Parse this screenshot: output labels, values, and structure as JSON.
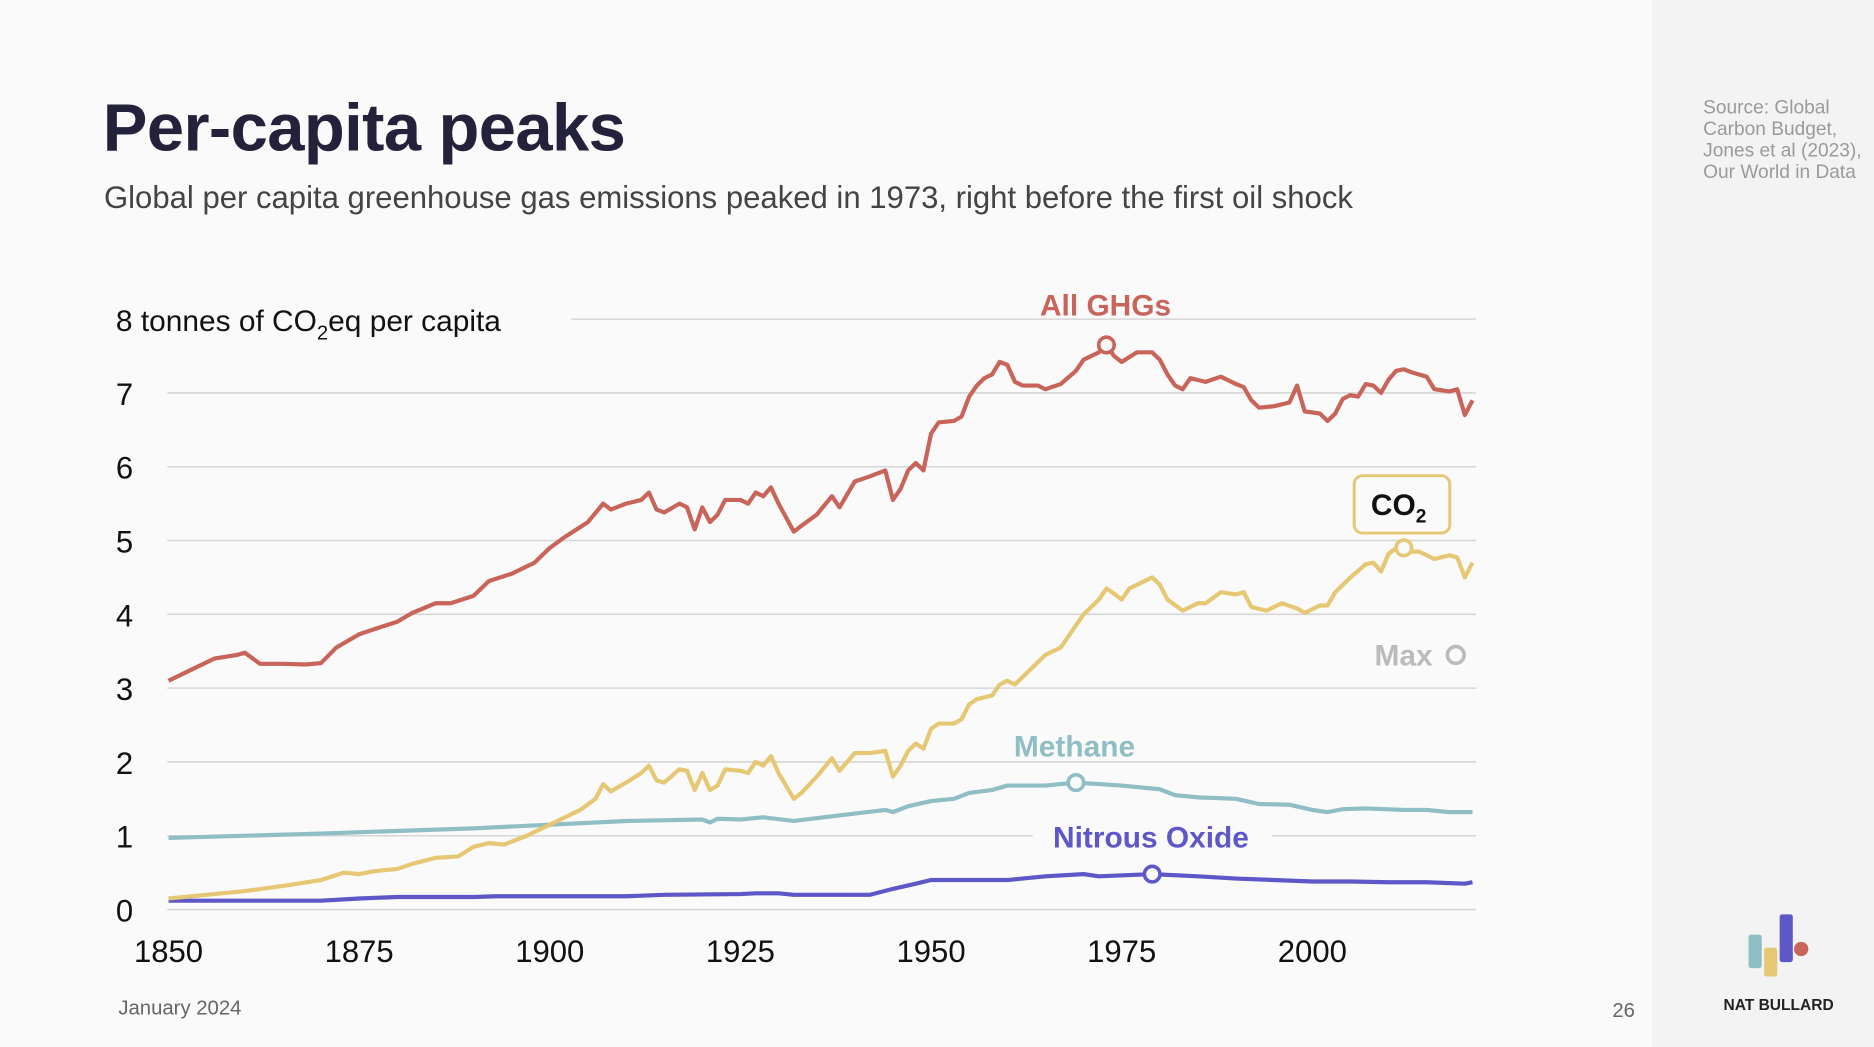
{
  "title": "Per-capita peaks",
  "subtitle": "Global per capita greenhouse gas emissions peaked in 1973, right before the first oil shock",
  "source": "Source: Global Carbon Budget, Jones et al (2023), Our World in Data",
  "footer": {
    "date": "January 2024",
    "page": "26",
    "brand": "NAT BULLARD"
  },
  "colors": {
    "ghg": "#c8645a",
    "co2": "#e6c874",
    "methane": "#8fbec4",
    "nitrous": "#5e57c8",
    "max": "#bbbbbb"
  },
  "chart_data": {
    "type": "line",
    "title": "Per-capita peaks",
    "ylabel_prefix": "8 tonnes of CO",
    "ylabel_sub": "2",
    "ylabel_suffix": "eq per capita",
    "xlim": [
      1850,
      2021
    ],
    "ylim": [
      0,
      8
    ],
    "grid": true,
    "xticks": [
      "1850",
      "1875",
      "1900",
      "1925",
      "1950",
      "1975",
      "2000"
    ],
    "yticks": [
      "0",
      "1",
      "2",
      "3",
      "4",
      "5",
      "6",
      "7"
    ],
    "legend_label_max": "Max",
    "series": [
      {
        "name": "All GHGs",
        "key": "ghg",
        "max_year": 1973,
        "points": [
          [
            1850,
            3.1
          ],
          [
            1853,
            3.25
          ],
          [
            1856,
            3.4
          ],
          [
            1859,
            3.45
          ],
          [
            1860,
            3.48
          ],
          [
            1862,
            3.33
          ],
          [
            1865,
            3.33
          ],
          [
            1868,
            3.32
          ],
          [
            1870,
            3.34
          ],
          [
            1872,
            3.55
          ],
          [
            1875,
            3.73
          ],
          [
            1877,
            3.8
          ],
          [
            1880,
            3.9
          ],
          [
            1882,
            4.02
          ],
          [
            1885,
            4.15
          ],
          [
            1887,
            4.15
          ],
          [
            1890,
            4.25
          ],
          [
            1892,
            4.45
          ],
          [
            1895,
            4.55
          ],
          [
            1898,
            4.7
          ],
          [
            1900,
            4.9
          ],
          [
            1902,
            5.05
          ],
          [
            1905,
            5.25
          ],
          [
            1907,
            5.5
          ],
          [
            1908,
            5.42
          ],
          [
            1910,
            5.5
          ],
          [
            1912,
            5.55
          ],
          [
            1913,
            5.65
          ],
          [
            1914,
            5.42
          ],
          [
            1915,
            5.38
          ],
          [
            1917,
            5.5
          ],
          [
            1918,
            5.45
          ],
          [
            1919,
            5.15
          ],
          [
            1920,
            5.45
          ],
          [
            1921,
            5.25
          ],
          [
            1922,
            5.35
          ],
          [
            1923,
            5.55
          ],
          [
            1925,
            5.55
          ],
          [
            1926,
            5.5
          ],
          [
            1927,
            5.65
          ],
          [
            1928,
            5.6
          ],
          [
            1929,
            5.72
          ],
          [
            1930,
            5.5
          ],
          [
            1932,
            5.12
          ],
          [
            1933,
            5.2
          ],
          [
            1935,
            5.35
          ],
          [
            1937,
            5.6
          ],
          [
            1938,
            5.45
          ],
          [
            1940,
            5.8
          ],
          [
            1942,
            5.87
          ],
          [
            1944,
            5.95
          ],
          [
            1945,
            5.55
          ],
          [
            1946,
            5.7
          ],
          [
            1947,
            5.95
          ],
          [
            1948,
            6.05
          ],
          [
            1949,
            5.95
          ],
          [
            1950,
            6.45
          ],
          [
            1951,
            6.6
          ],
          [
            1953,
            6.62
          ],
          [
            1954,
            6.68
          ],
          [
            1955,
            6.95
          ],
          [
            1956,
            7.1
          ],
          [
            1957,
            7.2
          ],
          [
            1958,
            7.25
          ],
          [
            1959,
            7.42
          ],
          [
            1960,
            7.38
          ],
          [
            1961,
            7.15
          ],
          [
            1962,
            7.1
          ],
          [
            1964,
            7.1
          ],
          [
            1965,
            7.05
          ],
          [
            1967,
            7.12
          ],
          [
            1969,
            7.3
          ],
          [
            1970,
            7.45
          ],
          [
            1971,
            7.5
          ],
          [
            1972,
            7.55
          ],
          [
            1973,
            7.65
          ],
          [
            1974,
            7.5
          ],
          [
            1975,
            7.42
          ],
          [
            1977,
            7.55
          ],
          [
            1979,
            7.55
          ],
          [
            1980,
            7.45
          ],
          [
            1981,
            7.25
          ],
          [
            1982,
            7.1
          ],
          [
            1983,
            7.05
          ],
          [
            1984,
            7.2
          ],
          [
            1986,
            7.15
          ],
          [
            1988,
            7.22
          ],
          [
            1990,
            7.12
          ],
          [
            1991,
            7.08
          ],
          [
            1992,
            6.9
          ],
          [
            1993,
            6.8
          ],
          [
            1995,
            6.82
          ],
          [
            1997,
            6.87
          ],
          [
            1998,
            7.1
          ],
          [
            1999,
            6.75
          ],
          [
            2001,
            6.72
          ],
          [
            2002,
            6.62
          ],
          [
            2003,
            6.72
          ],
          [
            2004,
            6.92
          ],
          [
            2005,
            6.97
          ],
          [
            2006,
            6.95
          ],
          [
            2007,
            7.12
          ],
          [
            2008,
            7.1
          ],
          [
            2009,
            7.0
          ],
          [
            2010,
            7.18
          ],
          [
            2011,
            7.3
          ],
          [
            2012,
            7.32
          ],
          [
            2013,
            7.28
          ],
          [
            2014,
            7.25
          ],
          [
            2015,
            7.22
          ],
          [
            2016,
            7.05
          ],
          [
            2018,
            7.02
          ],
          [
            2019,
            7.05
          ],
          [
            2020,
            6.7
          ],
          [
            2021,
            6.9
          ]
        ]
      },
      {
        "name": "CO",
        "name_sub": "2",
        "key": "co2",
        "max_year": 2012,
        "points": [
          [
            1850,
            0.15
          ],
          [
            1855,
            0.2
          ],
          [
            1860,
            0.25
          ],
          [
            1865,
            0.32
          ],
          [
            1870,
            0.4
          ],
          [
            1873,
            0.5
          ],
          [
            1875,
            0.48
          ],
          [
            1877,
            0.52
          ],
          [
            1880,
            0.55
          ],
          [
            1882,
            0.62
          ],
          [
            1885,
            0.7
          ],
          [
            1888,
            0.72
          ],
          [
            1890,
            0.85
          ],
          [
            1892,
            0.9
          ],
          [
            1894,
            0.88
          ],
          [
            1897,
            1.0
          ],
          [
            1900,
            1.15
          ],
          [
            1902,
            1.25
          ],
          [
            1904,
            1.35
          ],
          [
            1906,
            1.5
          ],
          [
            1907,
            1.7
          ],
          [
            1908,
            1.6
          ],
          [
            1910,
            1.72
          ],
          [
            1912,
            1.85
          ],
          [
            1913,
            1.95
          ],
          [
            1914,
            1.75
          ],
          [
            1915,
            1.72
          ],
          [
            1917,
            1.9
          ],
          [
            1918,
            1.88
          ],
          [
            1919,
            1.62
          ],
          [
            1920,
            1.85
          ],
          [
            1921,
            1.62
          ],
          [
            1922,
            1.68
          ],
          [
            1923,
            1.9
          ],
          [
            1925,
            1.88
          ],
          [
            1926,
            1.85
          ],
          [
            1927,
            2.0
          ],
          [
            1928,
            1.95
          ],
          [
            1929,
            2.08
          ],
          [
            1930,
            1.85
          ],
          [
            1932,
            1.5
          ],
          [
            1933,
            1.58
          ],
          [
            1935,
            1.8
          ],
          [
            1937,
            2.05
          ],
          [
            1938,
            1.88
          ],
          [
            1940,
            2.12
          ],
          [
            1942,
            2.12
          ],
          [
            1944,
            2.15
          ],
          [
            1945,
            1.8
          ],
          [
            1946,
            1.95
          ],
          [
            1947,
            2.15
          ],
          [
            1948,
            2.25
          ],
          [
            1949,
            2.18
          ],
          [
            1950,
            2.45
          ],
          [
            1951,
            2.52
          ],
          [
            1953,
            2.52
          ],
          [
            1954,
            2.58
          ],
          [
            1955,
            2.78
          ],
          [
            1956,
            2.85
          ],
          [
            1958,
            2.9
          ],
          [
            1959,
            3.05
          ],
          [
            1960,
            3.1
          ],
          [
            1961,
            3.05
          ],
          [
            1963,
            3.25
          ],
          [
            1965,
            3.45
          ],
          [
            1967,
            3.55
          ],
          [
            1968,
            3.7
          ],
          [
            1970,
            4.0
          ],
          [
            1971,
            4.1
          ],
          [
            1972,
            4.2
          ],
          [
            1973,
            4.35
          ],
          [
            1974,
            4.28
          ],
          [
            1975,
            4.2
          ],
          [
            1976,
            4.35
          ],
          [
            1978,
            4.45
          ],
          [
            1979,
            4.5
          ],
          [
            1980,
            4.4
          ],
          [
            1981,
            4.2
          ],
          [
            1983,
            4.05
          ],
          [
            1985,
            4.15
          ],
          [
            1986,
            4.15
          ],
          [
            1988,
            4.3
          ],
          [
            1990,
            4.27
          ],
          [
            1991,
            4.3
          ],
          [
            1992,
            4.1
          ],
          [
            1994,
            4.05
          ],
          [
            1996,
            4.15
          ],
          [
            1998,
            4.08
          ],
          [
            1999,
            4.02
          ],
          [
            2001,
            4.12
          ],
          [
            2002,
            4.12
          ],
          [
            2003,
            4.3
          ],
          [
            2005,
            4.5
          ],
          [
            2007,
            4.68
          ],
          [
            2008,
            4.7
          ],
          [
            2009,
            4.58
          ],
          [
            2010,
            4.82
          ],
          [
            2011,
            4.9
          ],
          [
            2012,
            4.9
          ],
          [
            2013,
            4.85
          ],
          [
            2014,
            4.85
          ],
          [
            2016,
            4.75
          ],
          [
            2018,
            4.8
          ],
          [
            2019,
            4.77
          ],
          [
            2020,
            4.5
          ],
          [
            2021,
            4.7
          ]
        ]
      },
      {
        "name": "Methane",
        "key": "methane",
        "max_year": 1969,
        "points": [
          [
            1850,
            0.97
          ],
          [
            1870,
            1.03
          ],
          [
            1890,
            1.1
          ],
          [
            1900,
            1.15
          ],
          [
            1910,
            1.2
          ],
          [
            1920,
            1.22
          ],
          [
            1921,
            1.18
          ],
          [
            1922,
            1.23
          ],
          [
            1925,
            1.22
          ],
          [
            1928,
            1.25
          ],
          [
            1932,
            1.2
          ],
          [
            1940,
            1.3
          ],
          [
            1944,
            1.35
          ],
          [
            1945,
            1.32
          ],
          [
            1947,
            1.4
          ],
          [
            1950,
            1.47
          ],
          [
            1953,
            1.5
          ],
          [
            1955,
            1.58
          ],
          [
            1958,
            1.62
          ],
          [
            1960,
            1.68
          ],
          [
            1965,
            1.68
          ],
          [
            1969,
            1.72
          ],
          [
            1972,
            1.7
          ],
          [
            1975,
            1.68
          ],
          [
            1978,
            1.65
          ],
          [
            1980,
            1.63
          ],
          [
            1982,
            1.55
          ],
          [
            1985,
            1.52
          ],
          [
            1990,
            1.5
          ],
          [
            1993,
            1.43
          ],
          [
            1997,
            1.42
          ],
          [
            2000,
            1.35
          ],
          [
            2002,
            1.32
          ],
          [
            2004,
            1.36
          ],
          [
            2007,
            1.37
          ],
          [
            2012,
            1.35
          ],
          [
            2015,
            1.35
          ],
          [
            2018,
            1.32
          ],
          [
            2021,
            1.32
          ]
        ]
      },
      {
        "name": "Nitrous Oxide",
        "key": "nitrous",
        "max_year": 1979,
        "points": [
          [
            1850,
            0.12
          ],
          [
            1870,
            0.12
          ],
          [
            1875,
            0.15
          ],
          [
            1880,
            0.17
          ],
          [
            1890,
            0.17
          ],
          [
            1893,
            0.18
          ],
          [
            1910,
            0.18
          ],
          [
            1915,
            0.2
          ],
          [
            1925,
            0.21
          ],
          [
            1927,
            0.22
          ],
          [
            1930,
            0.22
          ],
          [
            1932,
            0.2
          ],
          [
            1942,
            0.2
          ],
          [
            1945,
            0.28
          ],
          [
            1948,
            0.35
          ],
          [
            1950,
            0.4
          ],
          [
            1960,
            0.4
          ],
          [
            1965,
            0.45
          ],
          [
            1970,
            0.48
          ],
          [
            1972,
            0.45
          ],
          [
            1979,
            0.48
          ],
          [
            1985,
            0.45
          ],
          [
            1990,
            0.42
          ],
          [
            2000,
            0.38
          ],
          [
            2005,
            0.38
          ],
          [
            2010,
            0.37
          ],
          [
            2015,
            0.37
          ],
          [
            2020,
            0.35
          ],
          [
            2021,
            0.37
          ]
        ]
      }
    ]
  }
}
